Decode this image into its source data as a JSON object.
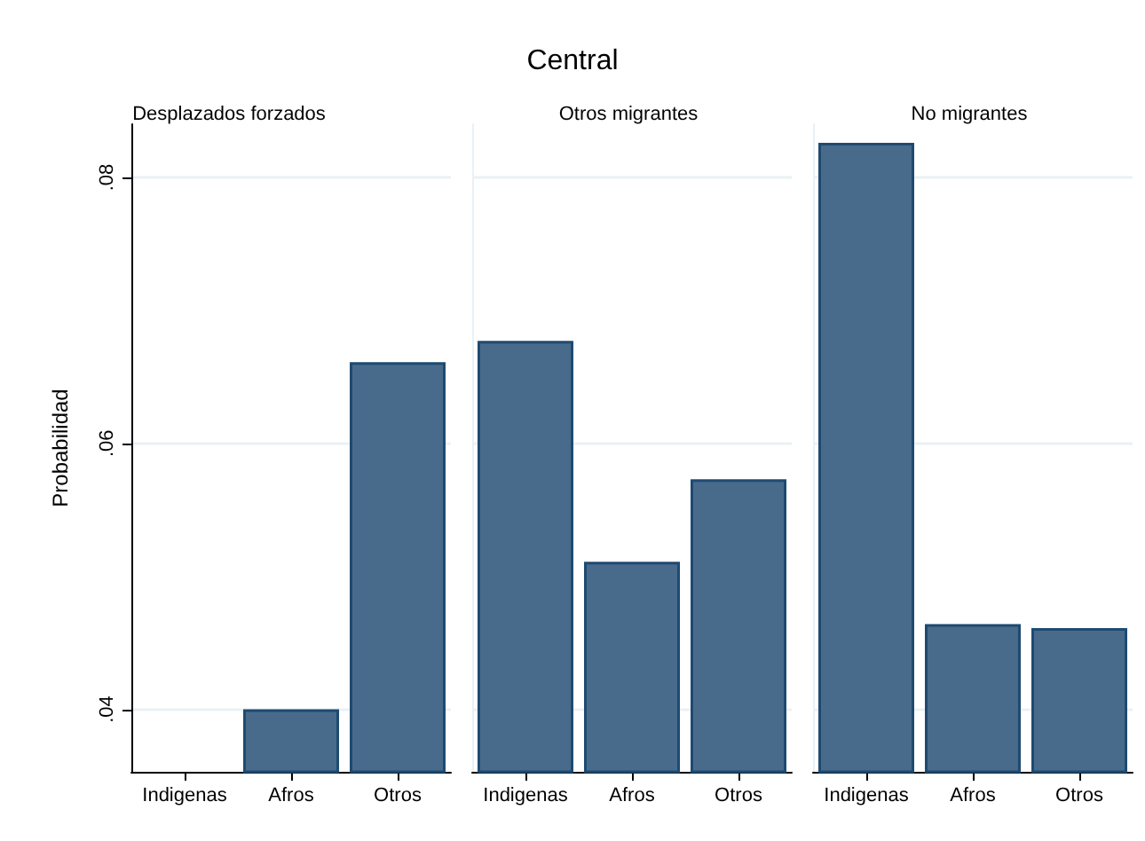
{
  "chart_data": [
    {
      "type": "bar",
      "subtitle": "Desplazados forzados",
      "ylabel": "Probabilidad",
      "categories": [
        "Indigenas",
        "Afros",
        "Otros"
      ],
      "values": [
        null,
        0.04,
        0.0661
      ],
      "color": "#486b8c",
      "ylim": [
        0.0353,
        0.084
      ],
      "yticks": [
        {
          "value": 0.04,
          "label": ".04"
        },
        {
          "value": 0.06,
          "label": ".06"
        },
        {
          "value": 0.08,
          "label": ".08"
        }
      ],
      "grid": "y"
    },
    {
      "type": "bar",
      "title": "Central",
      "subtitle": "Otros migrantes",
      "categories": [
        "Indigenas",
        "Afros",
        "Otros"
      ],
      "values": [
        0.0677,
        0.0511,
        0.0573
      ],
      "color": "#486b8c",
      "ylim": [
        0.0353,
        0.084
      ],
      "yticks": [
        0.04,
        0.06,
        0.08
      ],
      "grid": "y",
      "tick_labels": "x"
    },
    {
      "type": "bar",
      "subtitle": "No migrantes",
      "categories": [
        "Indigenas",
        "Afros",
        "Otros"
      ],
      "values": [
        0.0826,
        0.0464,
        0.0461
      ],
      "color": "#486b8c",
      "ylim": [
        0.0353,
        0.084
      ],
      "yticks": [
        0.04,
        0.06,
        0.08
      ],
      "grid": "y",
      "tick_labels": "x"
    }
  ]
}
